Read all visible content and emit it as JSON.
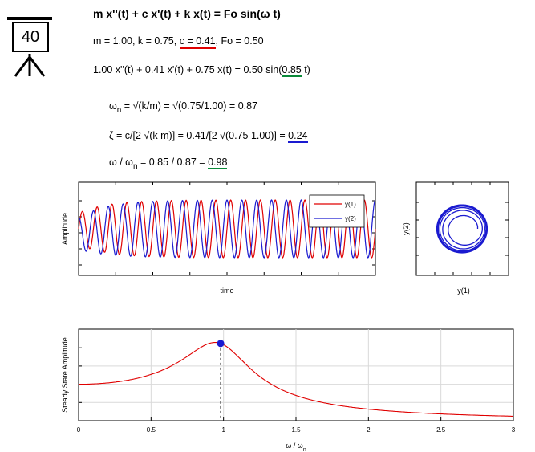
{
  "badge": {
    "number": "40"
  },
  "equations": {
    "title": "m x''(t) + c x'(t) + k x(t) = Fo sin(ω t)",
    "params_prefix": "m = 1.00, k = 0.75, ",
    "params_c": "c = 0.41",
    "params_suffix": ", Fo = 0.50",
    "ode_prefix": "1.00 x''(t) + 0.41 x'(t) + 0.75 x(t) = 0.50 sin(",
    "ode_omega": "0.85",
    "ode_suffix": " t)",
    "wn_label": "ω",
    "wn_sub": "n",
    "wn_rest": " = √(k/m) = √(0.75/1.00) = 0.87",
    "zeta_prefix": "ζ = c/[2 √(k m)] = 0.41/[2 √(0.75 1.00)] = ",
    "zeta_value": "0.24",
    "ratio_prefix": "ω / ω",
    "ratio_sub": "n",
    "ratio_mid": " = 0.85 / 0.87 = ",
    "ratio_value": "0.98"
  },
  "colors": {
    "red": "#e00000",
    "blue": "#1a1ad0",
    "green": "#0b8a3a"
  },
  "chart_data": [
    {
      "type": "line",
      "xlabel": "time",
      "ylabel": "Amplitude",
      "series": [
        {
          "name": "y(1)",
          "color": "#e00000",
          "omega": 0.85,
          "cycles": 20,
          "phase": 0.0
        },
        {
          "name": "y(2)",
          "color": "#1a1ad0",
          "omega": 0.85,
          "cycles": 20,
          "phase": 1.57
        }
      ],
      "legend": "top-right",
      "grid": false
    },
    {
      "type": "line",
      "xlabel": "y(1)",
      "ylabel": "y(2)",
      "series": [
        {
          "name": "phase trajectory",
          "color": "#1a1ad0"
        }
      ],
      "grid": false
    },
    {
      "type": "line",
      "xlabel": "ω / ω",
      "xlabel_sub": "n",
      "ylabel": "Steady State Amplitude",
      "xlim": [
        0,
        3
      ],
      "xticks": [
        "0",
        "0.5",
        "1",
        "1.5",
        "2",
        "2.5",
        "3"
      ],
      "zeta": 0.24,
      "marker": {
        "x": 0.98,
        "color": "#1a1ad0"
      },
      "series": [
        {
          "name": "response",
          "color": "#e00000"
        }
      ],
      "grid": true
    }
  ]
}
